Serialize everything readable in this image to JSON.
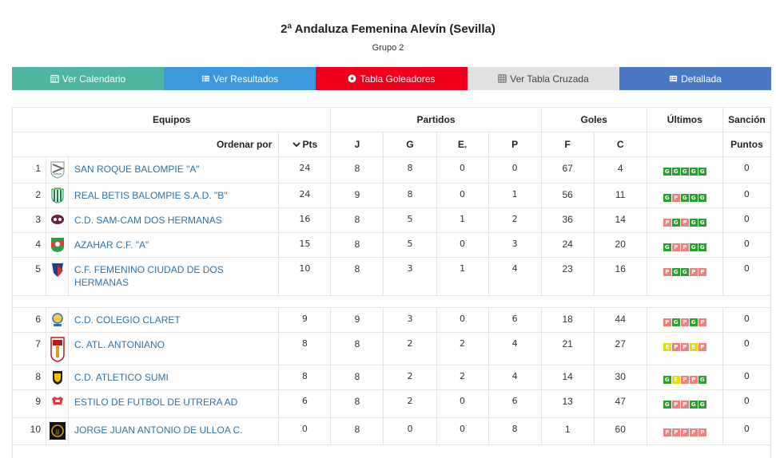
{
  "header": {
    "title": "2ª Andaluza Femenina Alevín (Sevilla)",
    "subtitle": "Grupo 2"
  },
  "nav": [
    {
      "label": "Ver Calendario",
      "icon": "calendar-icon",
      "color": "#4fb4a1"
    },
    {
      "label": "Ver Resultados",
      "icon": "list-icon",
      "color": "#3c97dd"
    },
    {
      "label": "Tabla Goleadores",
      "icon": "soccer-ball-icon",
      "color": "#f1001e"
    },
    {
      "label": "Ver Tabla Cruzada",
      "icon": "grid-icon",
      "color": "#e1e1e1"
    },
    {
      "label": "Detallada",
      "icon": "table-icon",
      "color": "#4b78c4"
    }
  ],
  "table": {
    "groups": {
      "equipos": "Equipos",
      "partidos": "Partidos",
      "goles": "Goles",
      "ultimos": "Últimos",
      "sancion": "Sanción"
    },
    "columns": {
      "ordenar": "Ordenar por",
      "pts": "Pts",
      "j": "J",
      "g": "G",
      "e": "E.",
      "p": "P",
      "f": "F",
      "c": "C",
      "puntos": "Puntos"
    },
    "rows": [
      {
        "pos": "1",
        "team": "SAN ROQUE BALOMPIE \"A\"",
        "pts": "24",
        "j": "8",
        "g": "8",
        "e": "0",
        "p": "0",
        "f": "67",
        "c": "4",
        "last": [
          "G",
          "G",
          "G",
          "G",
          "G"
        ],
        "sancion": "0",
        "crest": "crest-san-roque"
      },
      {
        "pos": "2",
        "team": "REAL BETIS BALOMPIE S.A.D. \"B\"",
        "pts": "24",
        "j": "9",
        "g": "8",
        "e": "0",
        "p": "1",
        "f": "56",
        "c": "11",
        "last": [
          "G",
          "P",
          "G",
          "G",
          "G"
        ],
        "sancion": "0",
        "crest": "crest-betis"
      },
      {
        "pos": "3",
        "team": "C.D. SAM-CAM DOS HERMANAS",
        "pts": "16",
        "j": "8",
        "g": "5",
        "e": "1",
        "p": "2",
        "f": "36",
        "c": "14",
        "last": [
          "P",
          "G",
          "P",
          "G",
          "G"
        ],
        "sancion": "0",
        "crest": "crest-samcam"
      },
      {
        "pos": "4",
        "team": "AZAHAR C.F. \"A\"",
        "pts": "15",
        "j": "8",
        "g": "5",
        "e": "0",
        "p": "3",
        "f": "24",
        "c": "20",
        "last": [
          "G",
          "P",
          "P",
          "G",
          "G"
        ],
        "sancion": "0",
        "crest": "crest-azahar"
      },
      {
        "pos": "5",
        "team": "C.F. FEMENINO CIUDAD DE DOS HERMANAS",
        "pts": "10",
        "j": "8",
        "g": "3",
        "e": "1",
        "p": "4",
        "f": "23",
        "c": "16",
        "last": [
          "P",
          "G",
          "G",
          "P",
          "P"
        ],
        "sancion": "0",
        "crest": "crest-ciudad-dh"
      },
      {
        "pos": "6",
        "team": "C.D. COLEGIO CLARET",
        "pts": "9",
        "j": "9",
        "g": "3",
        "e": "0",
        "p": "6",
        "f": "18",
        "c": "44",
        "last": [
          "P",
          "G",
          "P",
          "G",
          "P"
        ],
        "sancion": "0",
        "crest": "crest-claret"
      },
      {
        "pos": "7",
        "team": "C. ATL. ANTONIANO",
        "pts": "8",
        "j": "8",
        "g": "2",
        "e": "2",
        "p": "4",
        "f": "21",
        "c": "27",
        "last": [
          "E",
          "P",
          "P",
          "E",
          "P"
        ],
        "sancion": "0",
        "crest": "crest-antoniano"
      },
      {
        "pos": "8",
        "team": "C.D. ATLETICO SUMI",
        "pts": "8",
        "j": "8",
        "g": "2",
        "e": "2",
        "p": "4",
        "f": "14",
        "c": "30",
        "last": [
          "G",
          "E",
          "P",
          "P",
          "G"
        ],
        "sancion": "0",
        "crest": "crest-sumi"
      },
      {
        "pos": "9",
        "team": "ESTILO DE FUTBOL DE UTRERA AD",
        "pts": "6",
        "j": "8",
        "g": "2",
        "e": "0",
        "p": "6",
        "f": "13",
        "c": "47",
        "last": [
          "G",
          "P",
          "P",
          "G",
          "G"
        ],
        "sancion": "0",
        "crest": "crest-utrera"
      },
      {
        "pos": "10",
        "team": "JORGE JUAN ANTONIO DE ULLOA C.",
        "pts": "0",
        "j": "8",
        "g": "0",
        "e": "0",
        "p": "8",
        "f": "1",
        "c": "60",
        "last": [
          "P",
          "P",
          "P",
          "P",
          "P"
        ],
        "sancion": "0",
        "crest": "crest-ulloa"
      }
    ]
  },
  "colors": {
    "win": "#2ca02c",
    "loss": "#f08080",
    "draw": "#dddd10",
    "link": "#2f73a7"
  }
}
